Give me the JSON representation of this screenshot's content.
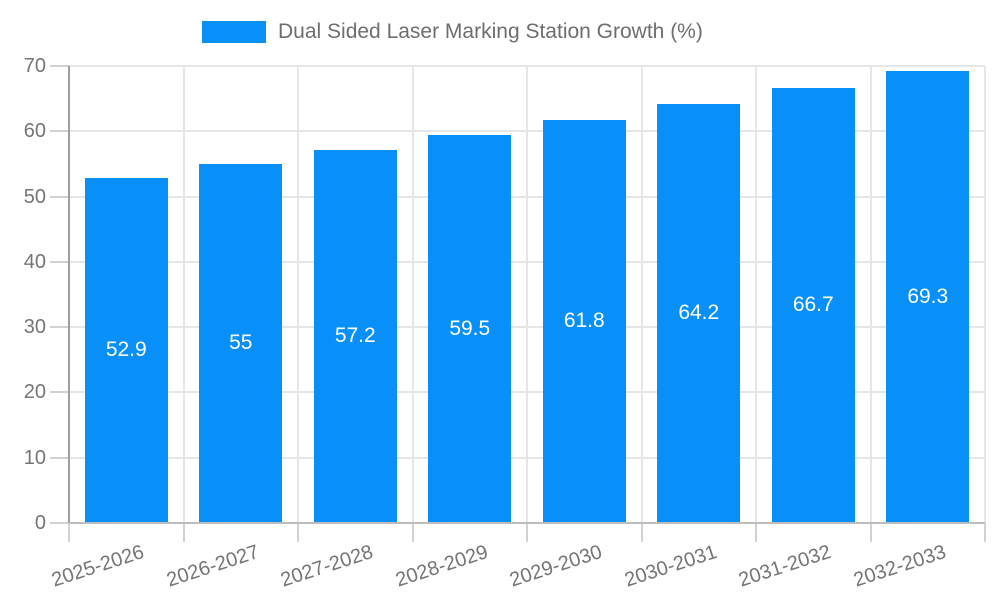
{
  "chart_data": {
    "type": "bar",
    "title": "Dual Sided Laser Marking Station Growth (%)",
    "categories": [
      "2025-2026",
      "2026-2027",
      "2027-2028",
      "2028-2029",
      "2029-2030",
      "2030-2031",
      "2031-2032",
      "2032-2033"
    ],
    "values": [
      52.9,
      55,
      57.2,
      59.5,
      61.8,
      64.2,
      66.7,
      69.3
    ],
    "xlabel": "",
    "ylabel": "",
    "ylim": [
      0,
      70
    ],
    "yticks": [
      0,
      10,
      20,
      30,
      40,
      50,
      60,
      70
    ],
    "grid": true,
    "legend_position": "top-center",
    "value_labels": "inside-center"
  },
  "colors": {
    "bar": "#0890f8",
    "grid": "#e6e6e6",
    "axis_line": "#9e9e9e",
    "baseline": "#bdbdbd",
    "tick": "#d2d2d2",
    "axis_text": "#757575",
    "value_label": "#ffffff"
  }
}
